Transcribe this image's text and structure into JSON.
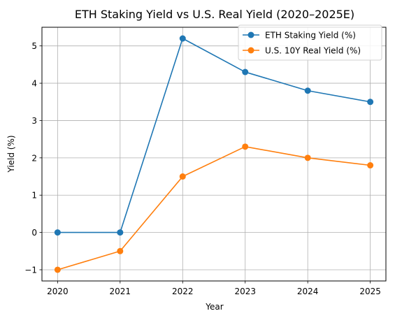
{
  "chart_data": {
    "type": "line",
    "title": "ETH Staking Yield vs U.S. Real Yield (2020–2025E)",
    "xlabel": "Year",
    "ylabel": "Yield (%)",
    "x": [
      2020,
      2021,
      2022,
      2023,
      2024,
      2025
    ],
    "xticks": [
      "2020",
      "2021",
      "2022",
      "2023",
      "2024",
      "2025"
    ],
    "yticks": [
      "−1",
      "0",
      "1",
      "2",
      "3",
      "4",
      "5"
    ],
    "ylim": [
      -1.3,
      5.5
    ],
    "grid": true,
    "legend_position": "top-right",
    "series": [
      {
        "name": "ETH Staking Yield (%)",
        "color": "#1f77b4",
        "marker": "circle",
        "values": [
          0,
          0,
          5.2,
          4.3,
          3.8,
          3.5
        ]
      },
      {
        "name": "U.S. 10Y Real Yield (%)",
        "color": "#ff7f0e",
        "marker": "circle",
        "values": [
          -1,
          -0.5,
          1.5,
          2.3,
          2.0,
          1.8
        ]
      }
    ]
  }
}
